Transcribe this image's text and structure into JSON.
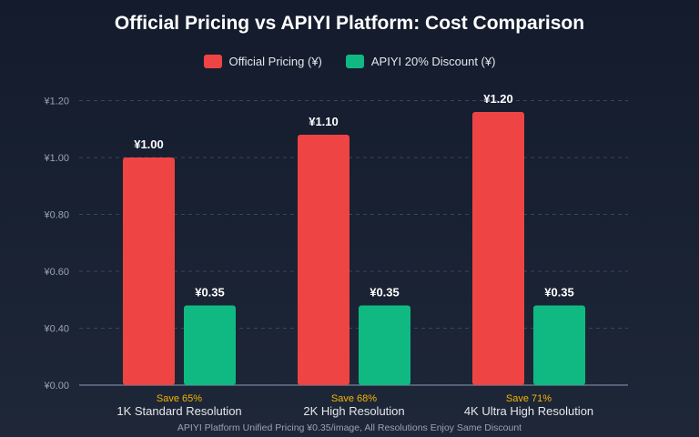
{
  "chart_data": {
    "type": "bar",
    "title": "Official Pricing vs APIYI Platform: Cost Comparison",
    "categories": [
      "1K Standard Resolution",
      "2K High Resolution",
      "4K Ultra High Resolution"
    ],
    "series": [
      {
        "name": "Official Pricing (¥)",
        "color": "#ef4444",
        "values": [
          1.0,
          1.1,
          1.2
        ],
        "labels": [
          "¥1.00",
          "¥1.10",
          "¥1.20"
        ]
      },
      {
        "name": "APIYI 20% Discount (¥)",
        "color": "#10b981",
        "values": [
          0.35,
          0.35,
          0.35
        ],
        "labels": [
          "¥0.35",
          "¥0.35",
          "¥0.35"
        ]
      }
    ],
    "savings": [
      "Save 65%",
      "Save 68%",
      "Save 71%"
    ],
    "savings_color": "#f5b400",
    "y_tick_labels": [
      "¥0.00",
      "¥0.40",
      "¥0.60",
      "¥0.80",
      "¥1.00",
      "¥1.20"
    ],
    "grid": true,
    "legend_position": "top-center",
    "footnote": "APIYI Platform Unified Pricing ¥0.35/image, All Resolutions Enjoy Same Discount"
  }
}
